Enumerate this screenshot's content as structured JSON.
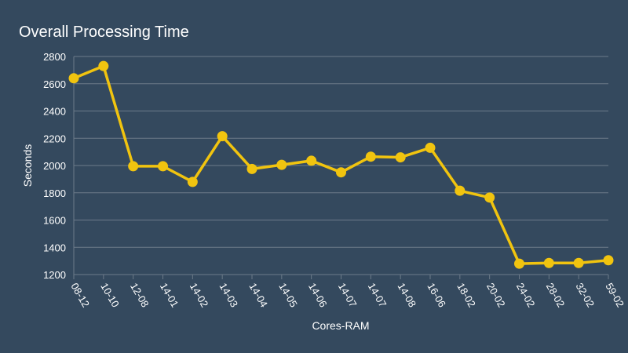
{
  "chart_data": {
    "type": "line",
    "title": "Overall Processing Time",
    "xlabel": "Cores-RAM",
    "ylabel": "Seconds",
    "categories": [
      "08-12",
      "10-10",
      "12-08",
      "14-01",
      "14-02",
      "14-03",
      "14-04",
      "14-05",
      "14-06",
      "14-07",
      "14-07",
      "14-08",
      "16-06",
      "18-02",
      "20-02",
      "24-02",
      "28-02",
      "32-02",
      "59-02"
    ],
    "series": [
      {
        "values": [
          2640,
          2730,
          1995,
          1995,
          1880,
          2215,
          1975,
          2005,
          2035,
          1950,
          2065,
          2060,
          2130,
          1815,
          1765,
          1280,
          1285,
          1285,
          1305
        ]
      }
    ],
    "ylim": [
      1200,
      2800
    ],
    "yticks": [
      1200,
      1400,
      1600,
      1800,
      2000,
      2200,
      2400,
      2600,
      2800
    ],
    "grid": true,
    "colors": {
      "background": "#34495e",
      "line": "#f1c40f",
      "grid": "#6c7a89"
    }
  }
}
